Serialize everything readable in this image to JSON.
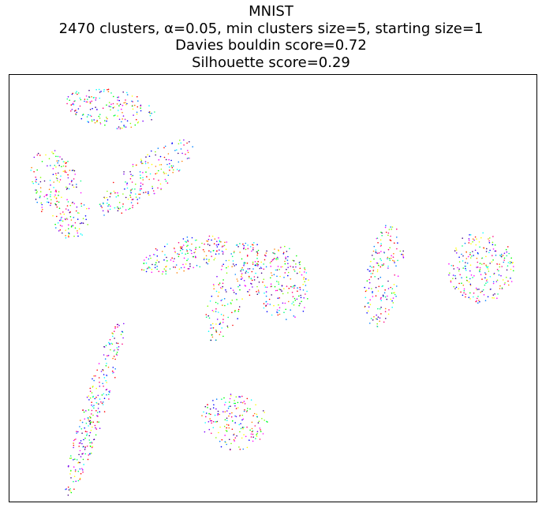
{
  "chart_data": {
    "type": "scatter",
    "title_lines": [
      "MNIST",
      "2470 clusters, α=0.05, min clusters size=5, starting size=1",
      "Davies bouldin score=0.72",
      "Silhouette score=0.29"
    ],
    "xlabel": "",
    "ylabel": "",
    "xlim": [
      0,
      100
    ],
    "ylim": [
      0,
      100
    ],
    "axis_ticks": false,
    "grid": false,
    "legend": false,
    "n_points": 2470,
    "point_colors": [
      "#ff0000",
      "#ff8000",
      "#ffff00",
      "#80ff00",
      "#00ff00",
      "#00ff80",
      "#00ffff",
      "#0080ff",
      "#0000ff",
      "#8000ff",
      "#ff00ff",
      "#ff0080",
      "#400080"
    ],
    "groups": [
      {
        "cx": 19.2,
        "cy": 92.2,
        "rx": 8.6,
        "ry": 3.7,
        "angle": -10,
        "n": 170
      },
      {
        "cx": 25.8,
        "cy": 75.9,
        "rx": 11.2,
        "ry": 3.6,
        "angle": 38,
        "n": 190
      },
      {
        "cx": 9.6,
        "cy": 72.0,
        "rx": 9.2,
        "ry": 4.7,
        "angle": -68,
        "n": 210
      },
      {
        "cx": 33.2,
        "cy": 57.8,
        "rx": 8.7,
        "ry": 3.2,
        "angle": 15,
        "n": 170
      },
      {
        "cx": 42.2,
        "cy": 49.8,
        "rx": 10.6,
        "ry": 3.6,
        "angle": 68,
        "n": 190
      },
      {
        "cx": 51.8,
        "cy": 51.0,
        "rx": 5.3,
        "ry": 7.3,
        "angle": 10,
        "n": 190
      },
      {
        "cx": 71.0,
        "cy": 53.2,
        "rx": 10.2,
        "ry": 3.4,
        "angle": 80,
        "n": 170
      },
      {
        "cx": 89.5,
        "cy": 54.8,
        "rx": 6.3,
        "ry": 6.8,
        "angle": 0,
        "n": 230
      },
      {
        "cx": 16.2,
        "cy": 22.1,
        "rx": 17.7,
        "ry": 2.2,
        "angle": 73,
        "n": 250
      },
      {
        "cx": 42.7,
        "cy": 18.6,
        "rx": 6.4,
        "ry": 5.3,
        "angle": -15,
        "n": 170
      }
    ]
  }
}
